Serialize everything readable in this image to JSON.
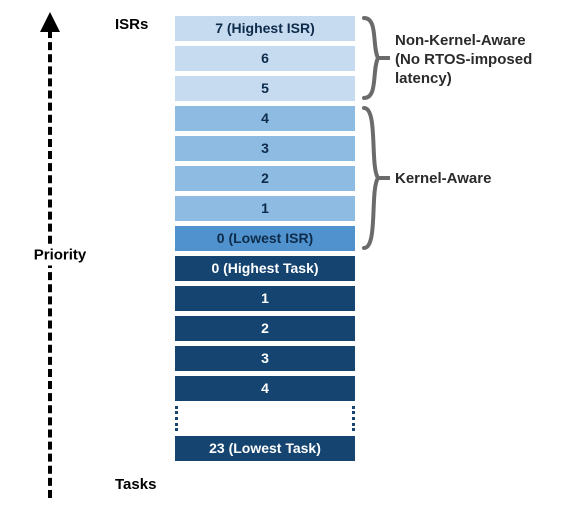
{
  "diagram": {
    "axis_label": "Priority",
    "isrs_label": "ISRs",
    "tasks_label": "Tasks",
    "colors": {
      "isr_light": "#c6dbef",
      "isr_mid": "#8dbbe2",
      "isr_dark": "#4f92cd",
      "task_solid": "#14446f",
      "task_highlight_bg": "#14446f",
      "arrow": "#000000",
      "brace": "#6b6b6b",
      "bg": "#ffffff"
    },
    "annotations": {
      "non_kernel": {
        "line1": "Non-Kernel-Aware",
        "line2": "(No RTOS-imposed latency)"
      },
      "kernel": {
        "line1": "Kernel-Aware"
      }
    },
    "cells": [
      {
        "label": "7 (Highest ISR)",
        "group": "isr_light",
        "text": "dark"
      },
      {
        "label": "6",
        "group": "isr_light",
        "text": "dark"
      },
      {
        "label": "5",
        "group": "isr_light",
        "text": "dark"
      },
      {
        "label": "4",
        "group": "isr_mid",
        "text": "dark"
      },
      {
        "label": "3",
        "group": "isr_mid",
        "text": "dark"
      },
      {
        "label": "2",
        "group": "isr_mid",
        "text": "dark"
      },
      {
        "label": "1",
        "group": "isr_mid",
        "text": "dark"
      },
      {
        "label": "0 (Lowest ISR)",
        "group": "isr_dark",
        "text": "dark"
      },
      {
        "label": "0 (Highest Task)",
        "group": "task_solid",
        "text": "light"
      },
      {
        "label": "1",
        "group": "task_solid",
        "text": "light"
      },
      {
        "label": "2",
        "group": "task_solid",
        "text": "light"
      },
      {
        "label": "3",
        "group": "task_solid",
        "text": "light"
      },
      {
        "label": "4",
        "group": "task_solid",
        "text": "light"
      },
      {
        "gap": true
      },
      {
        "label": "23 (Lowest Task)",
        "group": "task_solid",
        "text": "light"
      }
    ]
  }
}
